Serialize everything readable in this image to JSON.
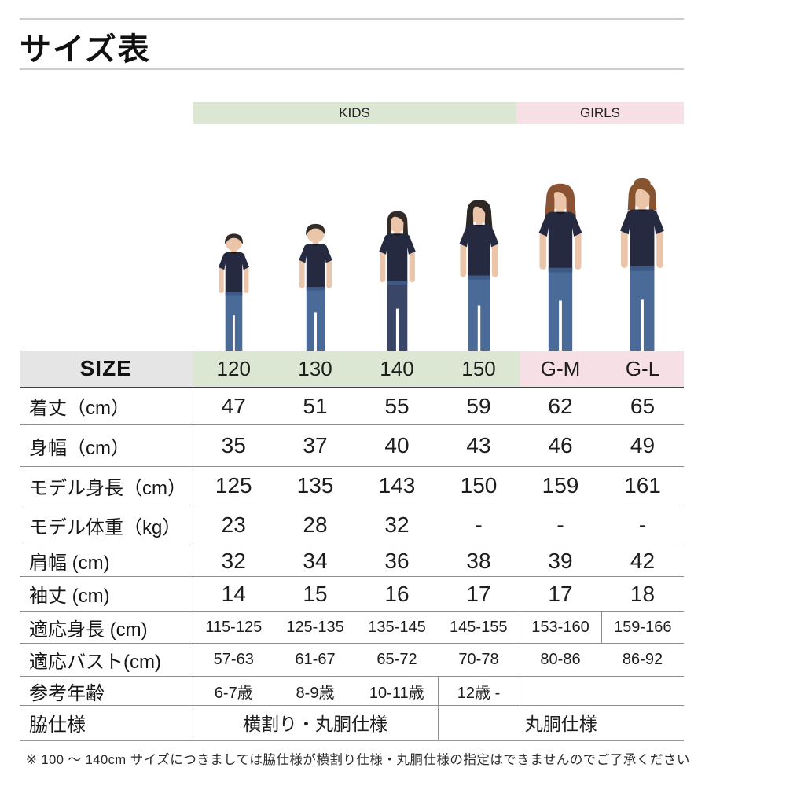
{
  "page_title": "サイズ表",
  "category_bar": {
    "kids_label": "KIDS",
    "girls_label": "GIRLS"
  },
  "size_table": {
    "header_label": "SIZE",
    "columns": [
      "120",
      "130",
      "140",
      "150",
      "G-M",
      "G-L"
    ],
    "kids_column_count": 4,
    "rows": [
      {
        "label": "着丈（cm）",
        "values": [
          "47",
          "51",
          "55",
          "59",
          "62",
          "65"
        ]
      },
      {
        "label": "身幅（cm）",
        "values": [
          "35",
          "37",
          "40",
          "43",
          "46",
          "49"
        ]
      },
      {
        "label": "モデル身長（cm）",
        "values": [
          "125",
          "135",
          "143",
          "150",
          "159",
          "161"
        ]
      },
      {
        "label": "モデル体重（kg）",
        "values": [
          "23",
          "28",
          "32",
          "-",
          "-",
          "-"
        ]
      },
      {
        "label": "肩幅 (cm)",
        "values": [
          "32",
          "34",
          "36",
          "38",
          "39",
          "42"
        ]
      },
      {
        "label": "袖丈 (cm)",
        "values": [
          "14",
          "15",
          "16",
          "17",
          "17",
          "18"
        ]
      },
      {
        "label": "適応身長 (cm)",
        "values": [
          "115-125",
          "125-135",
          "135-145",
          "145-155",
          "153-160",
          "159-166"
        ]
      },
      {
        "label": "適応バスト(cm)",
        "values": [
          "57-63",
          "61-67",
          "65-72",
          "70-78",
          "80-86",
          "86-92"
        ]
      },
      {
        "label": "参考年齢",
        "values": [
          "6-7歳",
          "8-9歳",
          "10-11歳",
          "12歳 -",
          "",
          ""
        ]
      },
      {
        "label": "脇仕様",
        "merged": [
          {
            "text": "横割り・丸胴仕様",
            "span": 3
          },
          {
            "text": "丸胴仕様",
            "span": 3
          }
        ]
      }
    ]
  },
  "models": [
    {
      "column": "120",
      "figure": "boy"
    },
    {
      "column": "130",
      "figure": "boy"
    },
    {
      "column": "140",
      "figure": "girl"
    },
    {
      "column": "150",
      "figure": "girl-long"
    },
    {
      "column": "G-M",
      "figure": "woman-bob"
    },
    {
      "column": "G-L",
      "figure": "woman-updo"
    }
  ],
  "footnote": "※ 100 ～ 140cm サイズにつきましては脇仕様が横割り仕様・丸胴仕様の指定はできませんのでご了承ください",
  "colors": {
    "kids_green": "#dbe7d2",
    "girls_pink": "#f7e0e5",
    "size_header_gray": "#e5e5e5",
    "tshirt_navy": "#262a41",
    "jeans_denim": "#4a6b97"
  }
}
